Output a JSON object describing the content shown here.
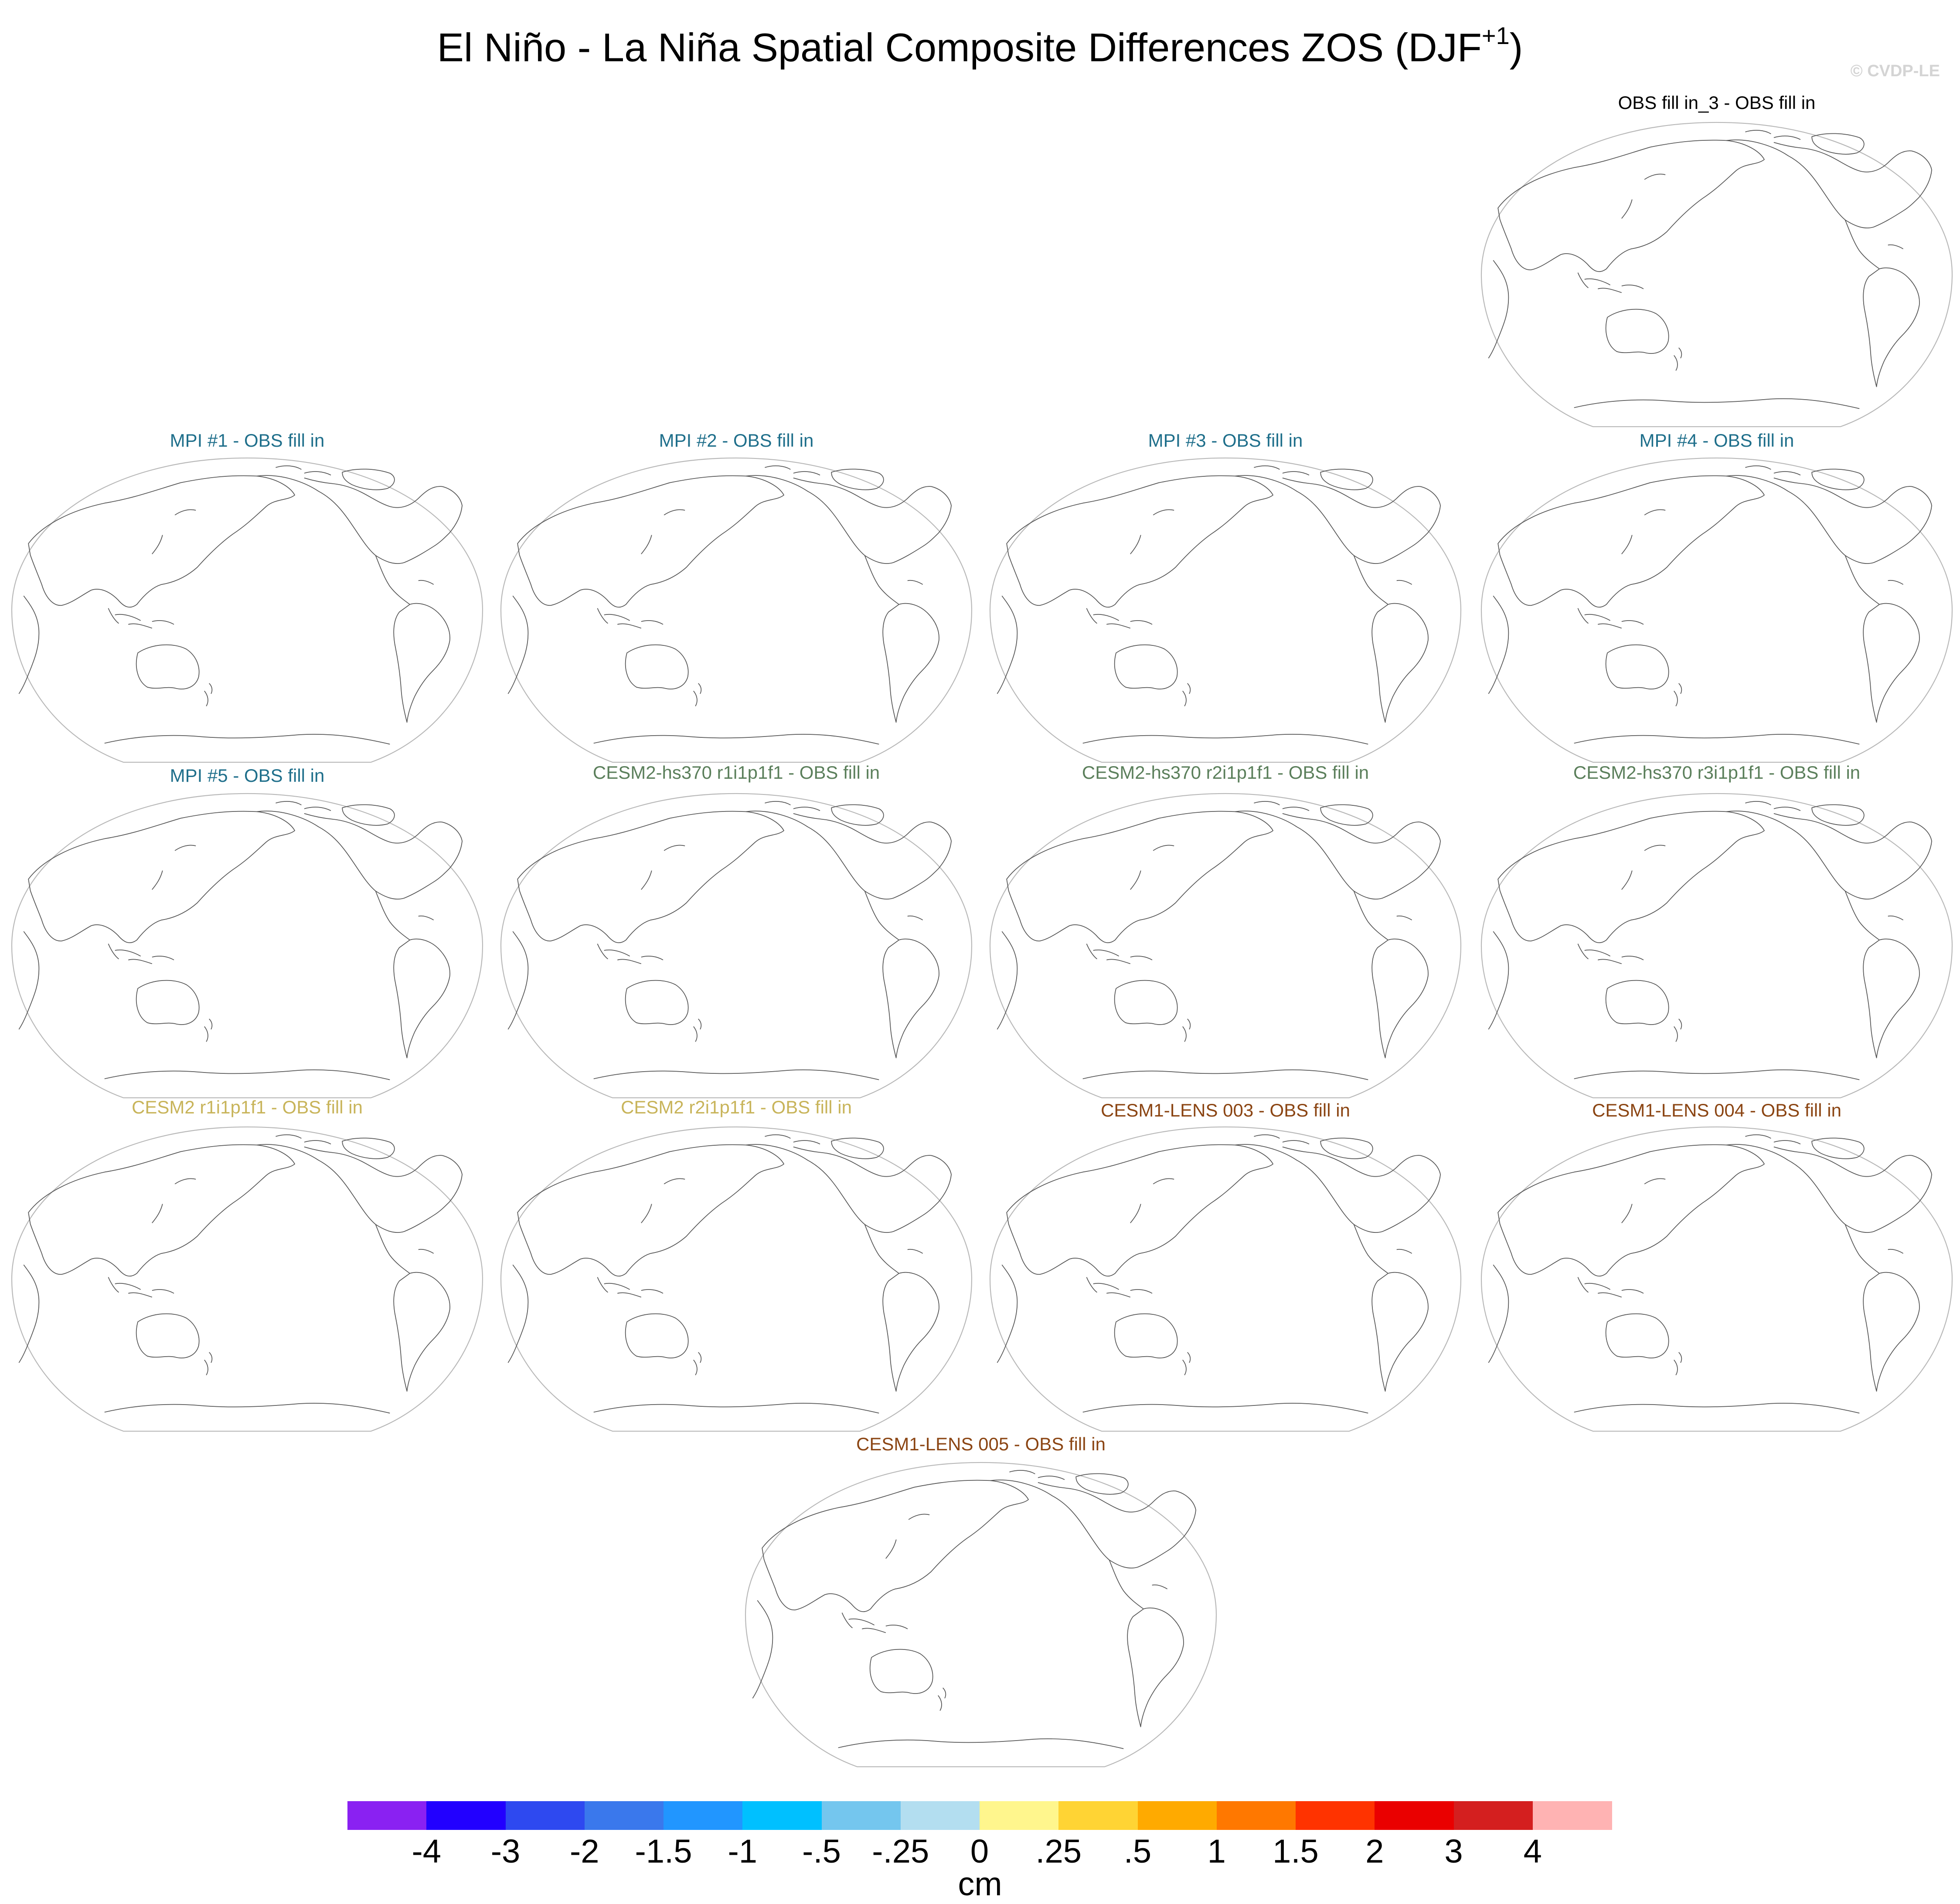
{
  "title": {
    "main": "El Niño - La Niña Spatial Composite Differences ZOS (DJF",
    "superscript": "+1",
    "close": ")"
  },
  "copyright": "© CVDP-LE",
  "panels": [
    {
      "title": "OBS fill in_3 - OBS fill in",
      "color": "#000000"
    },
    {
      "title": "MPI #1 - OBS fill in",
      "color": "#1f6f8b"
    },
    {
      "title": "MPI #2 - OBS fill in",
      "color": "#1f6f8b"
    },
    {
      "title": "MPI #3 - OBS fill in",
      "color": "#1f6f8b"
    },
    {
      "title": "MPI #4 - OBS fill in",
      "color": "#1f6f8b"
    },
    {
      "title": "MPI #5 - OBS fill in",
      "color": "#1f6f8b"
    },
    {
      "title": "CESM2-hs370 r1i1p1f1 - OBS fill in",
      "color": "#5b7f5b"
    },
    {
      "title": "CESM2-hs370 r2i1p1f1 - OBS fill in",
      "color": "#5b7f5b"
    },
    {
      "title": "CESM2-hs370 r3i1p1f1 - OBS fill in",
      "color": "#5b7f5b"
    },
    {
      "title": "CESM2 r1i1p1f1 - OBS fill in",
      "color": "#c8b45a"
    },
    {
      "title": "CESM2 r2i1p1f1 - OBS fill in",
      "color": "#c8b45a"
    },
    {
      "title": "CESM1-LENS 003 - OBS fill in",
      "color": "#8b4513"
    },
    {
      "title": "CESM1-LENS 004 - OBS fill in",
      "color": "#8b4513"
    },
    {
      "title": "CESM1-LENS 005 - OBS fill in",
      "color": "#8b4513"
    }
  ],
  "colorbar": {
    "colors": [
      "#8a21f2",
      "#2200ff",
      "#2e49f0",
      "#3a78ec",
      "#2196ff",
      "#00c0ff",
      "#74c6ee",
      "#b3def0",
      "#fff68d",
      "#ffd434",
      "#ffaa00",
      "#ff7800",
      "#ff3300",
      "#ea0000",
      "#d41f1f",
      "#ffb3b3"
    ],
    "labels": [
      "-4",
      "-3",
      "-2",
      "-1.5",
      "-1",
      "-.5",
      "-.25",
      "0",
      ".25",
      ".5",
      "1",
      "1.5",
      "2",
      "3",
      "4"
    ],
    "units": "cm"
  }
}
